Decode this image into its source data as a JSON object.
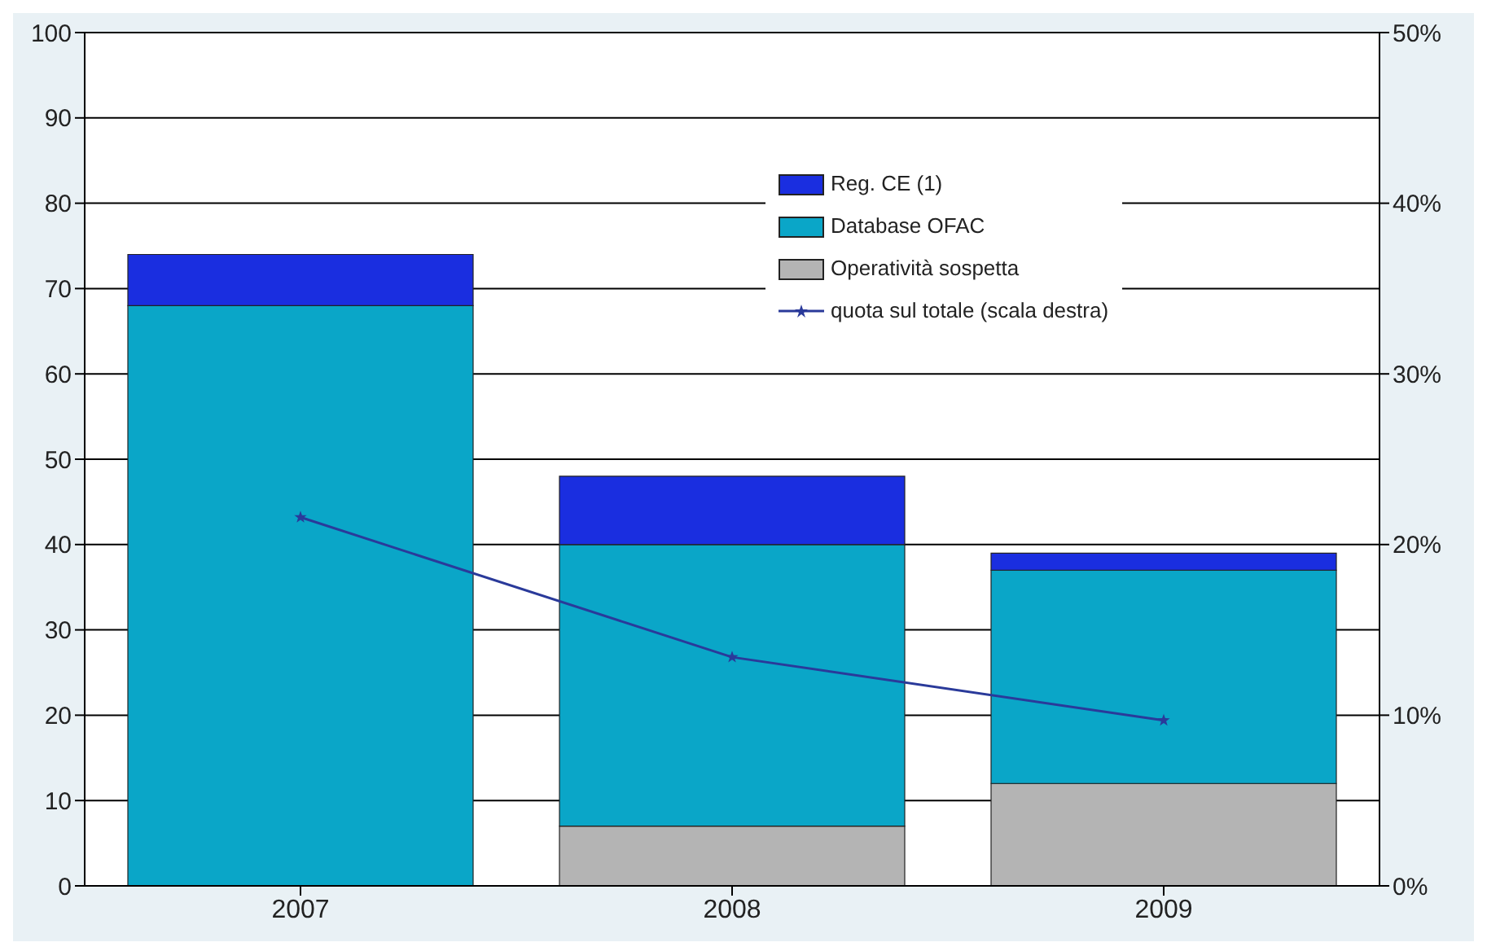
{
  "chart_data": {
    "type": "bar",
    "stacked": true,
    "categories": [
      "2007",
      "2008",
      "2009"
    ],
    "series": [
      {
        "name": "Operatività sospetta",
        "color": "#b4b4b4",
        "values": [
          0,
          7,
          12
        ]
      },
      {
        "name": "Database OFAC",
        "color": "#0aa6c8",
        "values": [
          68,
          33,
          25
        ]
      },
      {
        "name": "Reg. CE (1)",
        "color": "#1a2ee0",
        "values": [
          6,
          8,
          2
        ]
      },
      {
        "name": "quota sul totale (scala destra)",
        "type": "line",
        "axis": "y2",
        "color": "#2a3a9a",
        "marker": "star",
        "values": [
          21.6,
          13.4,
          9.7
        ]
      }
    ],
    "ylim": [
      0,
      100
    ],
    "yticks": [
      0,
      10,
      20,
      30,
      40,
      50,
      60,
      70,
      80,
      90,
      100
    ],
    "y2lim": [
      0,
      50
    ],
    "y2ticks": [
      {
        "value": 0,
        "label": "0%"
      },
      {
        "value": 10,
        "label": "10%"
      },
      {
        "value": 20,
        "label": "20%"
      },
      {
        "value": 30,
        "label": "30%"
      },
      {
        "value": 40,
        "label": "40%"
      },
      {
        "value": 50,
        "label": "50%"
      }
    ],
    "grid": "y",
    "legend": "top"
  }
}
